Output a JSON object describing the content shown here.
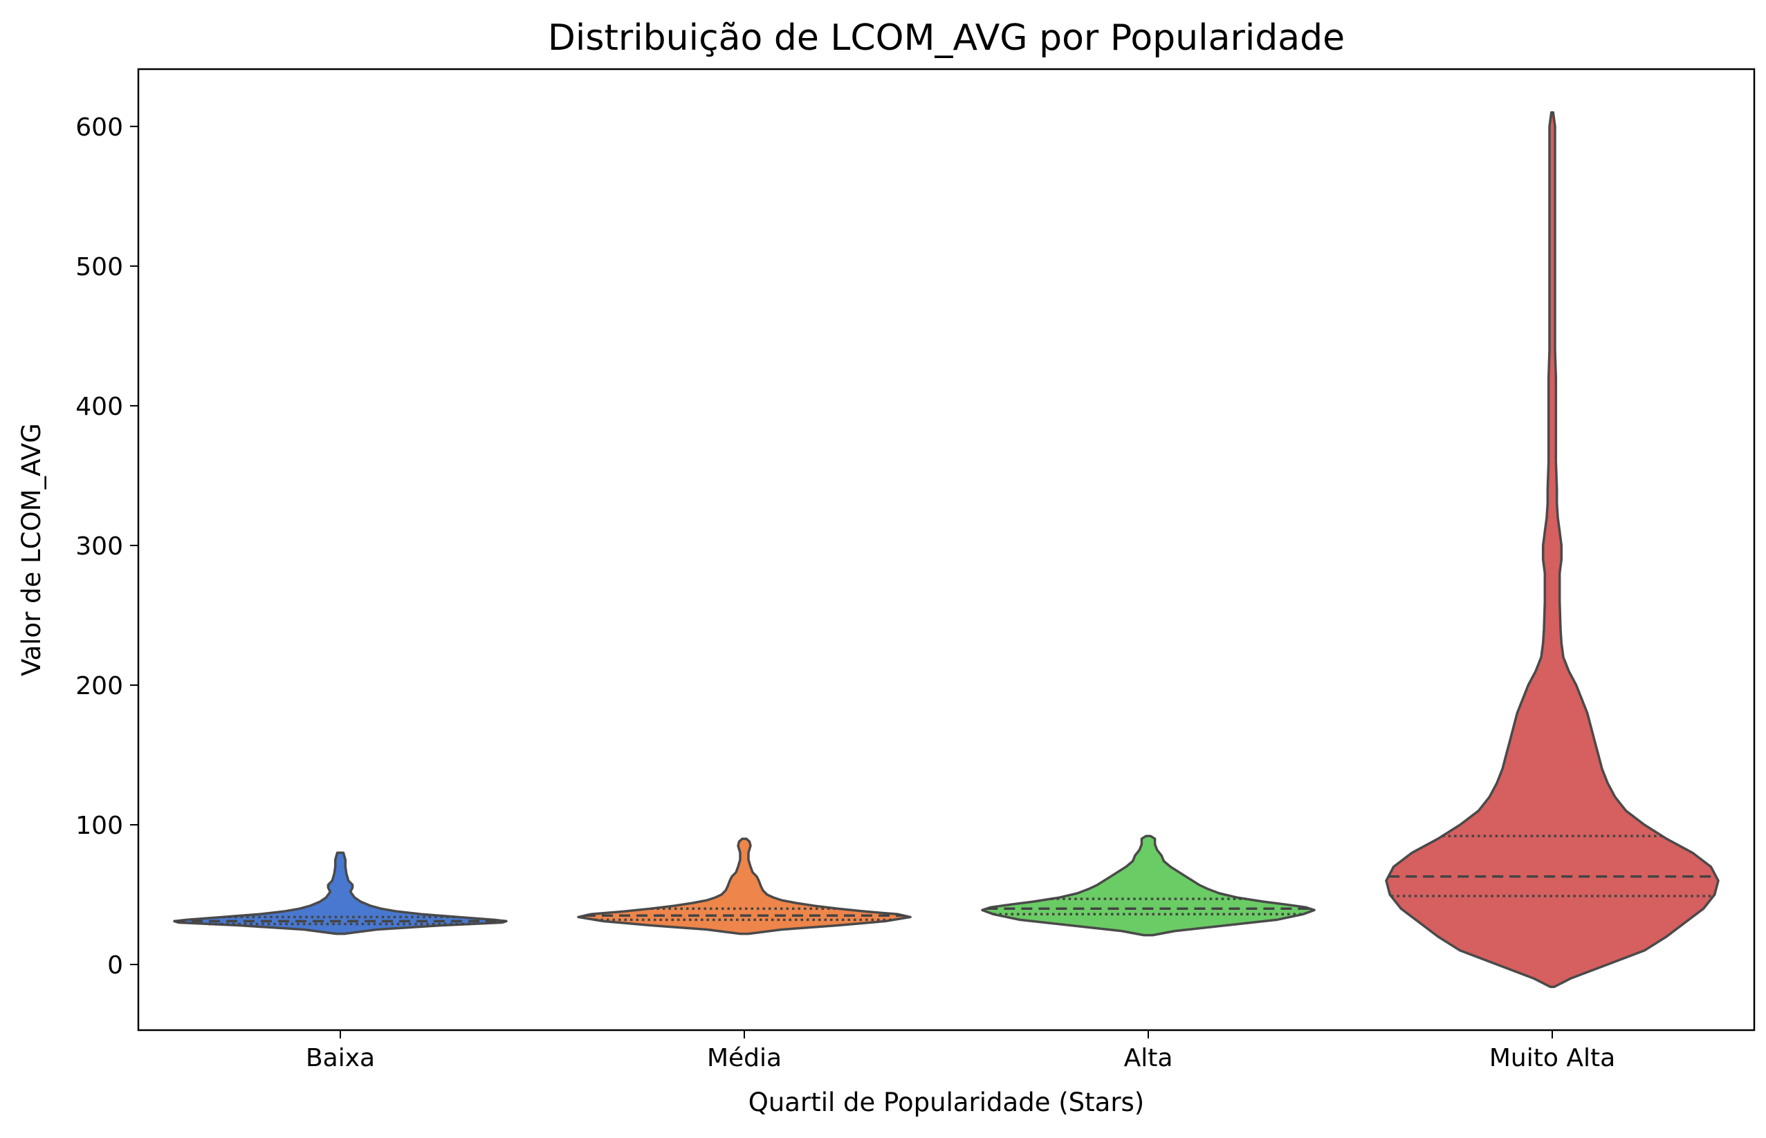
{
  "chart_data": {
    "type": "violin",
    "title": "Distribuição de LCOM_AVG por Popularidade",
    "xlabel": "Quartil de Popularidade (Stars)",
    "ylabel": "Valor de LCOM_AVG",
    "ylim": [
      -47,
      641
    ],
    "yticks": [
      0,
      100,
      200,
      300,
      400,
      500,
      600
    ],
    "categories": [
      "Baixa",
      "Média",
      "Alta",
      "Muito Alta"
    ],
    "grid": false,
    "inner": "quartile",
    "violins": [
      {
        "category": "Baixa",
        "color": "#4878d0",
        "min": 22,
        "max": 80,
        "q1": 29,
        "median": 31,
        "q3": 34,
        "profile": [
          [
            22,
            2
          ],
          [
            25,
            18
          ],
          [
            28,
            50
          ],
          [
            30,
            80
          ],
          [
            31,
            82
          ],
          [
            32,
            76
          ],
          [
            34,
            58
          ],
          [
            36,
            40
          ],
          [
            38,
            28
          ],
          [
            40,
            20
          ],
          [
            42,
            15
          ],
          [
            45,
            10
          ],
          [
            48,
            7
          ],
          [
            50,
            6
          ],
          [
            52,
            5
          ],
          [
            55,
            6
          ],
          [
            57,
            6
          ],
          [
            60,
            4
          ],
          [
            65,
            3
          ],
          [
            70,
            2.5
          ],
          [
            75,
            2.5
          ],
          [
            80,
            1.5
          ]
        ]
      },
      {
        "category": "Média",
        "color": "#ee854a",
        "min": 22,
        "max": 90,
        "q1": 32,
        "median": 35,
        "q3": 40,
        "profile": [
          [
            22,
            2
          ],
          [
            25,
            18
          ],
          [
            28,
            45
          ],
          [
            31,
            68
          ],
          [
            34,
            80
          ],
          [
            36,
            74
          ],
          [
            38,
            58
          ],
          [
            40,
            45
          ],
          [
            42,
            34
          ],
          [
            44,
            25
          ],
          [
            46,
            18
          ],
          [
            48,
            14
          ],
          [
            50,
            11
          ],
          [
            53,
            9
          ],
          [
            56,
            8
          ],
          [
            60,
            7
          ],
          [
            63,
            6
          ],
          [
            66,
            4
          ],
          [
            70,
            3
          ],
          [
            75,
            2
          ],
          [
            80,
            2
          ],
          [
            85,
            3
          ],
          [
            88,
            2.5
          ],
          [
            90,
            1
          ]
        ]
      },
      {
        "category": "Alta",
        "color": "#6acc64",
        "min": 21,
        "max": 92,
        "q1": 36,
        "median": 40,
        "q3": 47,
        "profile": [
          [
            21,
            2
          ],
          [
            24,
            12
          ],
          [
            28,
            35
          ],
          [
            32,
            58
          ],
          [
            36,
            70
          ],
          [
            39,
            75
          ],
          [
            41,
            71
          ],
          [
            43,
            62
          ],
          [
            45,
            52
          ],
          [
            48,
            40
          ],
          [
            51,
            32
          ],
          [
            54,
            27
          ],
          [
            57,
            23
          ],
          [
            60,
            20
          ],
          [
            63,
            17
          ],
          [
            66,
            14
          ],
          [
            70,
            10
          ],
          [
            74,
            7
          ],
          [
            78,
            6
          ],
          [
            82,
            4
          ],
          [
            86,
            3
          ],
          [
            90,
            3
          ],
          [
            92,
            1
          ]
        ]
      },
      {
        "category": "Muito Alta",
        "color": "#d65f5f",
        "min": -16,
        "max": 610,
        "q1": 49,
        "median": 63,
        "q3": 92,
        "profile": [
          [
            -16,
            1
          ],
          [
            -10,
            10
          ],
          [
            0,
            30
          ],
          [
            10,
            50
          ],
          [
            20,
            62
          ],
          [
            30,
            72
          ],
          [
            40,
            82
          ],
          [
            50,
            88
          ],
          [
            60,
            90
          ],
          [
            70,
            86
          ],
          [
            80,
            76
          ],
          [
            90,
            62
          ],
          [
            100,
            50
          ],
          [
            110,
            40
          ],
          [
            120,
            34
          ],
          [
            130,
            30
          ],
          [
            140,
            27
          ],
          [
            150,
            25
          ],
          [
            160,
            23
          ],
          [
            170,
            21
          ],
          [
            180,
            19
          ],
          [
            190,
            16
          ],
          [
            200,
            13
          ],
          [
            210,
            9
          ],
          [
            220,
            6
          ],
          [
            230,
            5
          ],
          [
            240,
            4.5
          ],
          [
            260,
            4
          ],
          [
            280,
            4
          ],
          [
            290,
            5
          ],
          [
            300,
            5
          ],
          [
            310,
            4
          ],
          [
            320,
            3
          ],
          [
            330,
            2.5
          ],
          [
            340,
            2.5
          ],
          [
            360,
            2
          ],
          [
            400,
            2
          ],
          [
            420,
            2
          ],
          [
            440,
            1.5
          ],
          [
            480,
            1.5
          ],
          [
            520,
            1.5
          ],
          [
            560,
            1.5
          ],
          [
            600,
            1.5
          ],
          [
            610,
            0.5
          ]
        ]
      }
    ]
  }
}
